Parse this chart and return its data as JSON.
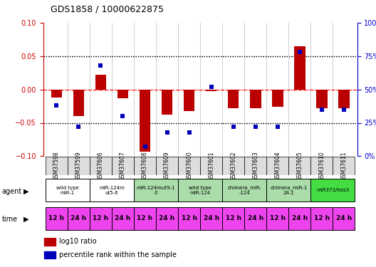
{
  "title": "GDS1858 / 10000622875",
  "samples": [
    "GSM37598",
    "GSM37599",
    "GSM37606",
    "GSM37607",
    "GSM37608",
    "GSM37609",
    "GSM37600",
    "GSM37601",
    "GSM37602",
    "GSM37603",
    "GSM37604",
    "GSM37605",
    "GSM37610",
    "GSM37611"
  ],
  "log10_ratio": [
    -0.012,
    -0.04,
    0.022,
    -0.013,
    -0.093,
    -0.038,
    -0.032,
    -0.003,
    -0.028,
    -0.028,
    -0.026,
    0.065,
    -0.028,
    -0.028
  ],
  "percentile_rank": [
    38,
    22,
    68,
    30,
    7,
    18,
    18,
    52,
    22,
    22,
    22,
    78,
    35,
    35
  ],
  "ylim_left": [
    -0.1,
    0.1
  ],
  "ylim_right": [
    0,
    100
  ],
  "yticks_left": [
    -0.1,
    -0.05,
    0.0,
    0.05,
    0.1
  ],
  "yticks_right": [
    0,
    25,
    50,
    75,
    100
  ],
  "hlines": [
    -0.05,
    0.0,
    0.05
  ],
  "hline_styles": [
    "dotted",
    "dashed",
    "dotted"
  ],
  "hline_colors": [
    "black",
    "red",
    "black"
  ],
  "agents": [
    {
      "label": "wild type\nmiR-1",
      "start": 0,
      "end": 2,
      "color": "#ffffff"
    },
    {
      "label": "miR-124m\nut5-6",
      "start": 2,
      "end": 4,
      "color": "#ffffff"
    },
    {
      "label": "miR-124mut9-1\n0",
      "start": 4,
      "end": 6,
      "color": "#aaddaa"
    },
    {
      "label": "wild type\nmiR-124",
      "start": 6,
      "end": 8,
      "color": "#aaddaa"
    },
    {
      "label": "chimera_miR-\n-124",
      "start": 8,
      "end": 10,
      "color": "#aaddaa"
    },
    {
      "label": "chimera_miR-1\n24-1",
      "start": 10,
      "end": 12,
      "color": "#aaddaa"
    },
    {
      "label": "miR373/hes3",
      "start": 12,
      "end": 14,
      "color": "#44dd44"
    }
  ],
  "time_labels": [
    "12 h",
    "24 h",
    "12 h",
    "24 h",
    "12 h",
    "24 h",
    "12 h",
    "24 h",
    "12 h",
    "24 h",
    "12 h",
    "24 h",
    "12 h",
    "24 h"
  ],
  "time_color": "#ee44ee",
  "bar_color": "#bb0000",
  "dot_color": "#0000bb",
  "background_color": "#ffffff",
  "legend_items": [
    {
      "color": "#bb0000",
      "label": "log10 ratio"
    },
    {
      "color": "#0000bb",
      "label": "percentile rank within the sample"
    }
  ]
}
